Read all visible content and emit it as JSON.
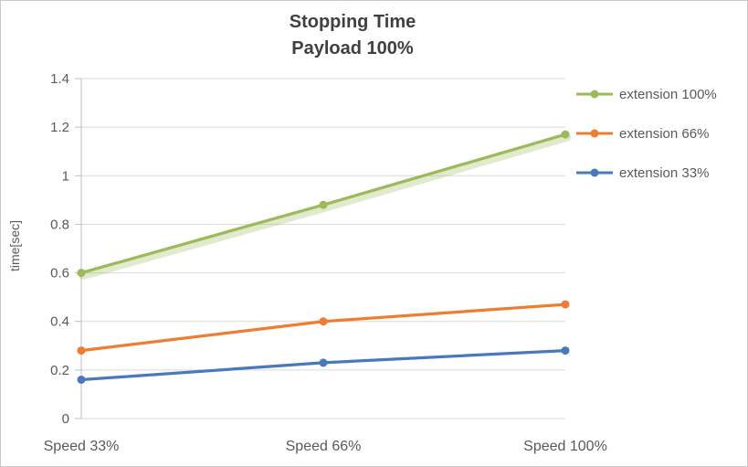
{
  "chart_data": {
    "type": "line",
    "title": "Stopping Time",
    "subtitle": "Payload 100%",
    "ylabel": "time[sec]",
    "categories": [
      "Speed 33%",
      "Speed 66%",
      "Speed 100%"
    ],
    "series": [
      {
        "name": "extension 100%",
        "color": "#9CBA5A",
        "glow": true,
        "values": [
          0.6,
          0.88,
          1.17
        ]
      },
      {
        "name": "extension 66%",
        "color": "#EE7D31",
        "glow": false,
        "values": [
          0.28,
          0.4,
          0.47
        ]
      },
      {
        "name": "extension 33%",
        "color": "#4879BD",
        "glow": false,
        "values": [
          0.16,
          0.23,
          0.28
        ]
      }
    ],
    "ylim": [
      0,
      1.4
    ],
    "ytick_step": 0.2,
    "ytick_labels": [
      "0",
      "0.2",
      "0.4",
      "0.6",
      "0.8",
      "1",
      "1.2",
      "1.4"
    ],
    "grid": true,
    "legend_position": "right"
  }
}
